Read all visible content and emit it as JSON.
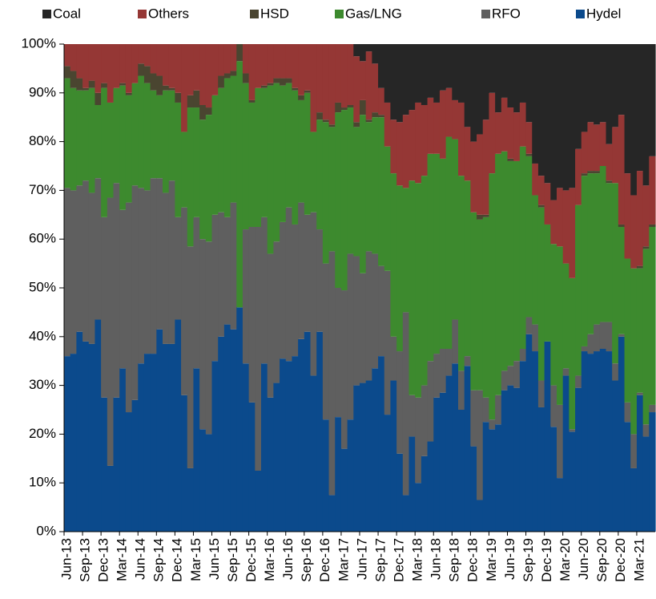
{
  "chart_data": {
    "type": "stacked_bar",
    "categories": [
      "Jun-13",
      null,
      null,
      "Sep-13",
      null,
      null,
      "Dec-13",
      null,
      null,
      "Mar-14",
      null,
      null,
      "Jun-14",
      null,
      null,
      "Sep-14",
      null,
      null,
      "Dec-14",
      null,
      null,
      "Mar-15",
      null,
      null,
      "Jun-15",
      null,
      null,
      "Sep-15",
      null,
      null,
      "Dec-15",
      null,
      null,
      "Mar-16",
      null,
      null,
      "Jun-16",
      null,
      null,
      "Sep-16",
      null,
      null,
      "Dec-16",
      null,
      null,
      "Mar-17",
      null,
      null,
      "Jun-17",
      null,
      null,
      "Sep-17",
      null,
      null,
      "Dec-17",
      null,
      null,
      "Mar-18",
      null,
      null,
      "Jun-18",
      null,
      null,
      "Sep-18",
      null,
      null,
      "Dec-18",
      null,
      null,
      "Mar-19",
      null,
      null,
      "Jun-19",
      null,
      null,
      "Sep-19",
      null,
      null,
      "Dec-19",
      null,
      null,
      "Mar-20",
      null,
      null,
      "Jun-20",
      null,
      null,
      "Sep-20",
      null,
      null,
      "Dec-20",
      null,
      null,
      "Mar-21",
      null,
      null
    ],
    "series": [
      {
        "name": "Coal",
        "color": "#262626",
        "values": [
          0,
          0,
          0,
          0,
          0,
          0,
          0,
          0,
          0,
          0,
          0,
          0,
          0,
          0,
          0,
          0,
          0,
          0,
          0,
          0,
          0,
          0,
          0,
          0,
          0,
          0,
          0,
          0,
          0,
          0,
          0,
          0,
          0,
          0,
          0,
          0,
          0,
          0,
          0,
          0,
          0,
          0,
          0,
          0,
          0,
          0,
          0,
          2.5,
          3.5,
          1.5,
          4,
          9,
          12,
          15.5,
          16,
          14.5,
          13.5,
          12,
          12.5,
          11,
          12,
          9.5,
          9,
          11.5,
          12,
          17,
          20,
          18.5,
          15.5,
          10,
          14,
          11,
          13,
          14,
          12,
          16,
          24.5,
          27,
          28.5,
          32,
          29.5,
          30,
          29.5,
          21.5,
          18,
          16,
          16.5,
          16,
          20.5,
          17,
          14.5,
          26.5,
          31,
          26,
          29,
          23
        ]
      },
      {
        "name": "Others",
        "color": "#953735",
        "values": [
          4.5,
          5.5,
          7,
          9,
          7.5,
          10,
          8,
          12,
          9,
          8,
          10,
          8,
          4,
          4.5,
          6,
          6.5,
          8.5,
          9,
          10,
          18,
          10.5,
          9.5,
          12.5,
          13,
          10.5,
          6.5,
          6,
          5.5,
          0,
          6,
          11.5,
          9,
          8.5,
          8,
          7,
          7,
          7,
          9,
          10.5,
          9.5,
          18,
          14,
          15.5,
          16.5,
          12,
          13,
          12.5,
          13.5,
          8,
          14,
          10,
          5.5,
          9,
          11,
          13,
          15,
          14.5,
          16.5,
          14.5,
          11.5,
          10.5,
          14,
          10,
          8,
          15,
          11,
          14.5,
          16.5,
          19.5,
          16.5,
          8.5,
          11,
          10.5,
          10,
          9,
          6.5,
          6.5,
          6,
          8.5,
          9,
          12,
          15,
          18.5,
          11.5,
          8.5,
          10,
          9.5,
          9,
          7.5,
          11.5,
          22.5,
          17.5,
          15,
          19.5,
          12.5,
          14
        ]
      },
      {
        "name": "HSD",
        "color": "#4a4530",
        "values": [
          2.5,
          3.5,
          2.5,
          0.5,
          1.5,
          2.5,
          1,
          0,
          0,
          0.5,
          0.5,
          0,
          2.5,
          3.5,
          3.5,
          4,
          1,
          0.5,
          2,
          0,
          2.5,
          3.5,
          3,
          1.5,
          0,
          2.5,
          1,
          1,
          3.5,
          2,
          0.5,
          0,
          0.5,
          0.5,
          1,
          1.5,
          1,
          0.5,
          1,
          0.5,
          0,
          1.5,
          0.5,
          0.5,
          2,
          0.5,
          0.5,
          1,
          3,
          0.5,
          1,
          0.5,
          0,
          0,
          0,
          0,
          0,
          0,
          0,
          0,
          0,
          0,
          0,
          0,
          0,
          0,
          0,
          1,
          0.5,
          0,
          0,
          0,
          0.5,
          0,
          0,
          0.5,
          0,
          0.5,
          0,
          0,
          0,
          0,
          0,
          0,
          0.5,
          0.5,
          0.5,
          0,
          0.5,
          0,
          0.5,
          0,
          0,
          0.5,
          0.5,
          0.5
        ]
      },
      {
        "name": "Gas/LNG",
        "color": "#3d8a2e",
        "values": [
          22.5,
          21,
          19.5,
          18.5,
          21.5,
          15,
          26.5,
          19.5,
          19.5,
          25.5,
          22,
          21,
          23,
          22,
          18,
          17,
          21,
          18.5,
          23.5,
          15.5,
          28.5,
          22.5,
          24.5,
          26,
          24.5,
          25.5,
          28.5,
          26,
          50.5,
          30,
          25.5,
          28.5,
          26.5,
          34.5,
          32.5,
          28,
          25.5,
          27.5,
          21,
          25,
          16.5,
          22.5,
          29,
          25.5,
          36,
          37,
          30,
          26.5,
          32.5,
          26.5,
          28,
          30.5,
          25.5,
          33.5,
          34,
          25.5,
          44,
          44,
          43,
          42.5,
          41,
          39,
          43.5,
          37,
          40,
          36,
          36.5,
          35,
          37,
          50.5,
          49.5,
          45,
          42,
          41,
          41.5,
          33,
          26.5,
          35.5,
          24,
          29,
          32.5,
          21.5,
          31,
          35,
          35,
          33,
          31,
          32,
          28.5,
          37,
          22,
          29.5,
          34,
          25.5,
          36,
          36.5
        ]
      },
      {
        "name": "RFO",
        "color": "#5f5f5f",
        "values": [
          34.5,
          33.5,
          30,
          33,
          31,
          29,
          37,
          55,
          44,
          32.5,
          43,
          44,
          36,
          33.5,
          36,
          31,
          31,
          33.5,
          21,
          38.5,
          45.5,
          31,
          39,
          39.5,
          30,
          25.5,
          22,
          26,
          0,
          27.5,
          36,
          50,
          30,
          29.5,
          29,
          28,
          31.5,
          27,
          28,
          24,
          33.5,
          21,
          32,
          50,
          26.5,
          32.5,
          34,
          26.5,
          22.5,
          26.5,
          23.5,
          18.5,
          29.5,
          9,
          21,
          37.5,
          8.5,
          17.5,
          14.5,
          16.5,
          9,
          9,
          5.5,
          9,
          8,
          2,
          11.5,
          22.5,
          5,
          2,
          6,
          4,
          4,
          5.5,
          2.5,
          3.5,
          5.5,
          5.5,
          0,
          8.5,
          15,
          1.5,
          0.5,
          2.5,
          1,
          4,
          5.5,
          5.5,
          6,
          3.5,
          0.5,
          4,
          7,
          0.5,
          2.5,
          1.5
        ]
      },
      {
        "name": "Hydel",
        "color": "#0b4a8c",
        "values": [
          36,
          36.5,
          41,
          39,
          38.5,
          43.5,
          27.5,
          13.5,
          27.5,
          33.5,
          24.5,
          27,
          34.5,
          36.5,
          36.5,
          41.5,
          38.5,
          38.5,
          43.5,
          28,
          13,
          33.5,
          21,
          20,
          35,
          40,
          42.5,
          41.5,
          46,
          34.5,
          26.5,
          12.5,
          34.5,
          27.5,
          30.5,
          35.5,
          35,
          36,
          39.5,
          41,
          32,
          41,
          23,
          7.5,
          23.5,
          17,
          23,
          30,
          30.5,
          31,
          33.5,
          36,
          24,
          31,
          16,
          7.5,
          19.5,
          10,
          15.5,
          18.5,
          27.5,
          28.5,
          32,
          34.5,
          25,
          34,
          17.5,
          6.5,
          22.5,
          21,
          22,
          29,
          30,
          29.5,
          35,
          40.5,
          37,
          25.5,
          39,
          21.5,
          11,
          32,
          20.5,
          29.5,
          37,
          36.5,
          37,
          37.5,
          37,
          31,
          40,
          22.5,
          13,
          28,
          19.5,
          24.5
        ]
      }
    ],
    "ylim": [
      0,
      100
    ],
    "yticks": [
      {
        "value": 0,
        "label": "0%"
      },
      {
        "value": 10,
        "label": "10%"
      },
      {
        "value": 20,
        "label": "20%"
      },
      {
        "value": 30,
        "label": "30%"
      },
      {
        "value": 40,
        "label": "40%"
      },
      {
        "value": 50,
        "label": "50%"
      },
      {
        "value": 60,
        "label": "60%"
      },
      {
        "value": 70,
        "label": "70%"
      },
      {
        "value": 80,
        "label": "80%"
      },
      {
        "value": 90,
        "label": "90%"
      },
      {
        "value": 100,
        "label": "100%"
      }
    ],
    "legend": "top"
  }
}
